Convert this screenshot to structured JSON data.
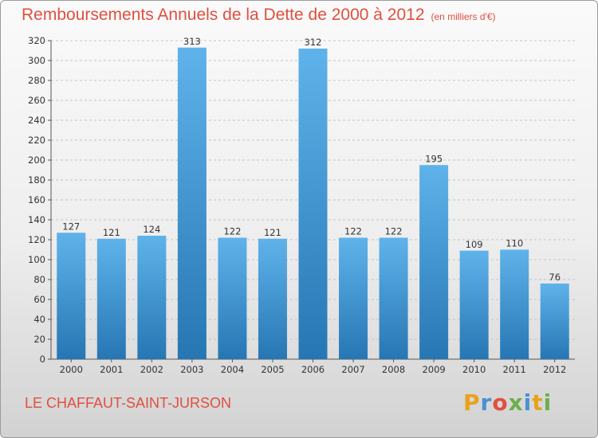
{
  "colors": {
    "title": "#e04f40",
    "bar_top": "#5fb3ea",
    "bar_bottom": "#2676b3",
    "grid": "#c4c4c4",
    "axis": "#555555"
  },
  "commune": "LE CHAFFAUT-SAINT-JURSON",
  "logo": {
    "letters": [
      {
        "char": "P",
        "color": "#e8a21c"
      },
      {
        "char": "r",
        "color": "#4a90d6"
      },
      {
        "char": "o",
        "color": "#e04f40"
      },
      {
        "char": "x",
        "color": "#6ab04c"
      },
      {
        "char": "i",
        "color": "#4a90d6"
      },
      {
        "char": "t",
        "color": "#e8a21c"
      },
      {
        "char": "i",
        "color": "#6ab04c"
      }
    ]
  },
  "chart_data": {
    "type": "bar",
    "title": "Remboursements Annuels de la Dette de 2000 à 2012",
    "subtitle": "(en milliers d'€)",
    "xlabel": "",
    "ylabel": "",
    "categories": [
      "2000",
      "2001",
      "2002",
      "2003",
      "2004",
      "2005",
      "2006",
      "2007",
      "2008",
      "2009",
      "2010",
      "2011",
      "2012"
    ],
    "values": [
      127,
      121,
      124,
      313,
      122,
      121,
      312,
      122,
      122,
      195,
      109,
      110,
      76
    ],
    "value_labels": [
      "127",
      "121",
      "124",
      "313",
      "122",
      "121",
      "312",
      "122",
      "122",
      "195",
      "109",
      "110",
      "76"
    ],
    "ylim": [
      0,
      320
    ],
    "yticks": [
      0,
      20,
      40,
      60,
      80,
      100,
      120,
      140,
      160,
      180,
      200,
      220,
      240,
      260,
      280,
      300,
      320
    ],
    "grid": true,
    "legend": "none"
  }
}
